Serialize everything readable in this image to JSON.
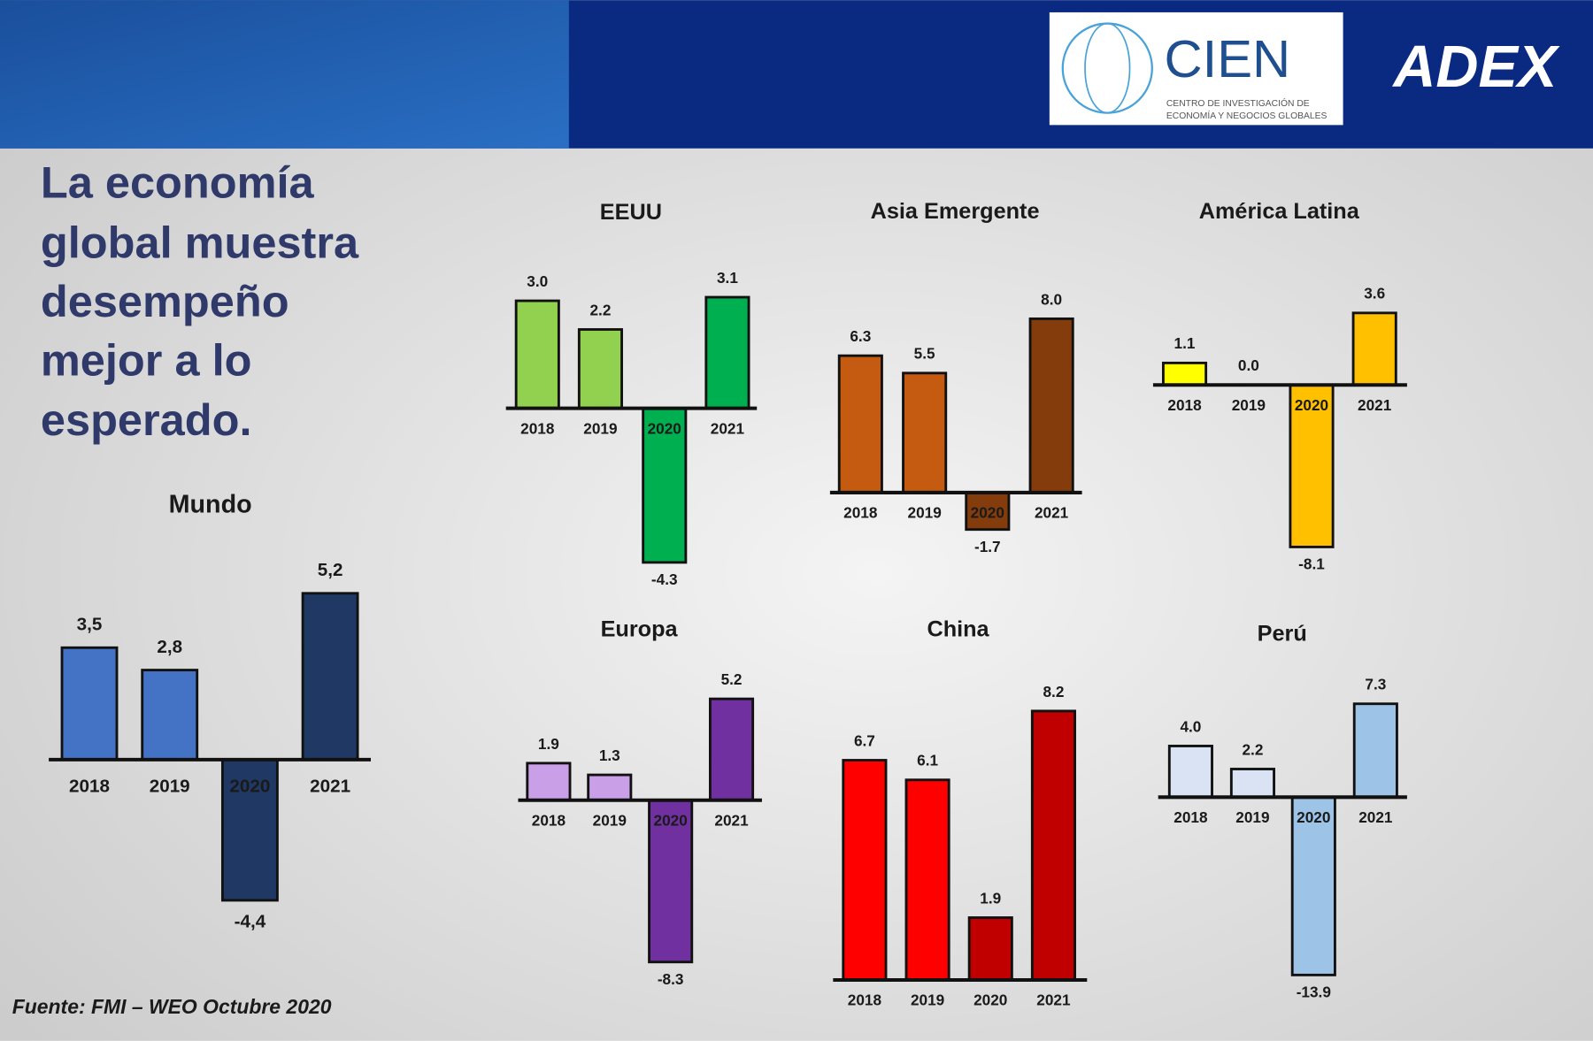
{
  "slide": {
    "brand_cien": "CIEN",
    "brand_cien_sub": [
      "CENTRO DE INVESTIGACIÓN DE",
      "ECONOMÍA Y NEGOCIOS GLOBALES"
    ],
    "brand_adex": "ADEX",
    "headline": [
      "La economía",
      "global muestra",
      "desempeño",
      "mejor a lo",
      "esperado."
    ],
    "source": "Fuente: FMI – WEO Octubre 2020"
  },
  "chart_data": [
    {
      "type": "bar",
      "title": "Mundo",
      "categories": [
        "2018",
        "2019",
        "2020",
        "2021"
      ],
      "values": [
        3.5,
        2.8,
        -4.4,
        5.2
      ],
      "value_labels": [
        "3,5",
        "2,8",
        "-4,4",
        "5,2"
      ],
      "colors": [
        "#4472c4",
        "#4472c4",
        "#1f3864",
        "#1f3864"
      ]
    },
    {
      "type": "bar",
      "title": "EEUU",
      "categories": [
        "2018",
        "2019",
        "2020",
        "2021"
      ],
      "values": [
        3.0,
        2.2,
        -4.3,
        3.1
      ],
      "value_labels": [
        "3.0",
        "2.2",
        "-4.3",
        "3.1"
      ],
      "colors": [
        "#92d050",
        "#92d050",
        "#00b050",
        "#00b050"
      ]
    },
    {
      "type": "bar",
      "title": "Asia Emergente",
      "categories": [
        "2018",
        "2019",
        "2020",
        "2021"
      ],
      "values": [
        6.3,
        5.5,
        -1.7,
        8.0
      ],
      "value_labels": [
        "6.3",
        "5.5",
        "-1.7",
        "8.0"
      ],
      "colors": [
        "#c55a11",
        "#c55a11",
        "#843c0c",
        "#843c0c"
      ]
    },
    {
      "type": "bar",
      "title": "América Latina",
      "categories": [
        "2018",
        "2019",
        "2020",
        "2021"
      ],
      "values": [
        1.1,
        0.0,
        -8.1,
        3.6
      ],
      "value_labels": [
        "1.1",
        "0.0",
        "-8.1",
        "3.6"
      ],
      "colors": [
        "#ffff00",
        "#ffff00",
        "#ffc000",
        "#ffc000"
      ]
    },
    {
      "type": "bar",
      "title": "Europa",
      "categories": [
        "2018",
        "2019",
        "2020",
        "2021"
      ],
      "values": [
        1.9,
        1.3,
        -8.3,
        5.2
      ],
      "value_labels": [
        "1.9",
        "1.3",
        "-8.3",
        "5.2"
      ],
      "colors": [
        "#c9a0e8",
        "#c9a0e8",
        "#7030a0",
        "#7030a0"
      ]
    },
    {
      "type": "bar",
      "title": "China",
      "categories": [
        "2018",
        "2019",
        "2020",
        "2021"
      ],
      "values": [
        6.7,
        6.1,
        1.9,
        8.2
      ],
      "value_labels": [
        "6.7",
        "6.1",
        "1.9",
        "8.2"
      ],
      "colors": [
        "#ff0000",
        "#ff0000",
        "#c00000",
        "#c00000"
      ]
    },
    {
      "type": "bar",
      "title": "Perú",
      "categories": [
        "2018",
        "2019",
        "2020",
        "2021"
      ],
      "values": [
        4.0,
        2.2,
        -13.9,
        7.3
      ],
      "value_labels": [
        "4.0",
        "2.2",
        "-13.9",
        "7.3"
      ],
      "colors": [
        "#dae3f3",
        "#dae3f3",
        "#9dc3e6",
        "#9dc3e6"
      ]
    }
  ]
}
